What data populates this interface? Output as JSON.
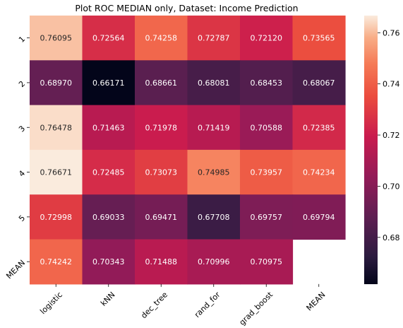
{
  "chart_data": {
    "type": "heatmap",
    "title": "Plot ROC MEDIAN only, Dataset: Income Prediction",
    "x_categories": [
      "logistic",
      "kNN",
      "dec_tree",
      "rand_for",
      "grad_boost",
      "MEAN"
    ],
    "y_categories": [
      "1",
      "2",
      "3",
      "4",
      "5",
      "MEAN"
    ],
    "values": [
      [
        0.76095,
        0.72564,
        0.74258,
        0.72787,
        0.7212,
        0.73565
      ],
      [
        0.6897,
        0.66171,
        0.68661,
        0.68081,
        0.68453,
        0.68067
      ],
      [
        0.76478,
        0.71463,
        0.71978,
        0.71419,
        0.70588,
        0.72385
      ],
      [
        0.76671,
        0.72485,
        0.73073,
        0.74985,
        0.73957,
        0.74234
      ],
      [
        0.72998,
        0.69033,
        0.69471,
        0.67708,
        0.69757,
        0.69794
      ],
      [
        0.74242,
        0.70343,
        0.71488,
        0.70996,
        0.70975,
        null
      ]
    ],
    "value_labels": [
      [
        "0.76095",
        "0.72564",
        "0.74258",
        "0.72787",
        "0.72120",
        "0.73565"
      ],
      [
        "0.68970",
        "0.66171",
        "0.68661",
        "0.68081",
        "0.68453",
        "0.68067"
      ],
      [
        "0.76478",
        "0.71463",
        "0.71978",
        "0.71419",
        "0.70588",
        "0.72385"
      ],
      [
        "0.76671",
        "0.72485",
        "0.73073",
        "0.74985",
        "0.73957",
        "0.74234"
      ],
      [
        "0.72998",
        "0.69033",
        "0.69471",
        "0.67708",
        "0.69757",
        "0.69794"
      ],
      [
        "0.74242",
        "0.70343",
        "0.71488",
        "0.70996",
        "0.70975",
        ""
      ]
    ],
    "colorbar": {
      "min": 0.66171,
      "max": 0.76671,
      "ticks": [
        0.68,
        0.7,
        0.72,
        0.74,
        0.76
      ],
      "tick_labels": [
        "0.68",
        "0.70",
        "0.72",
        "0.74",
        "0.76"
      ],
      "colormap": "rocket"
    },
    "xlabel": "",
    "ylabel": ""
  }
}
